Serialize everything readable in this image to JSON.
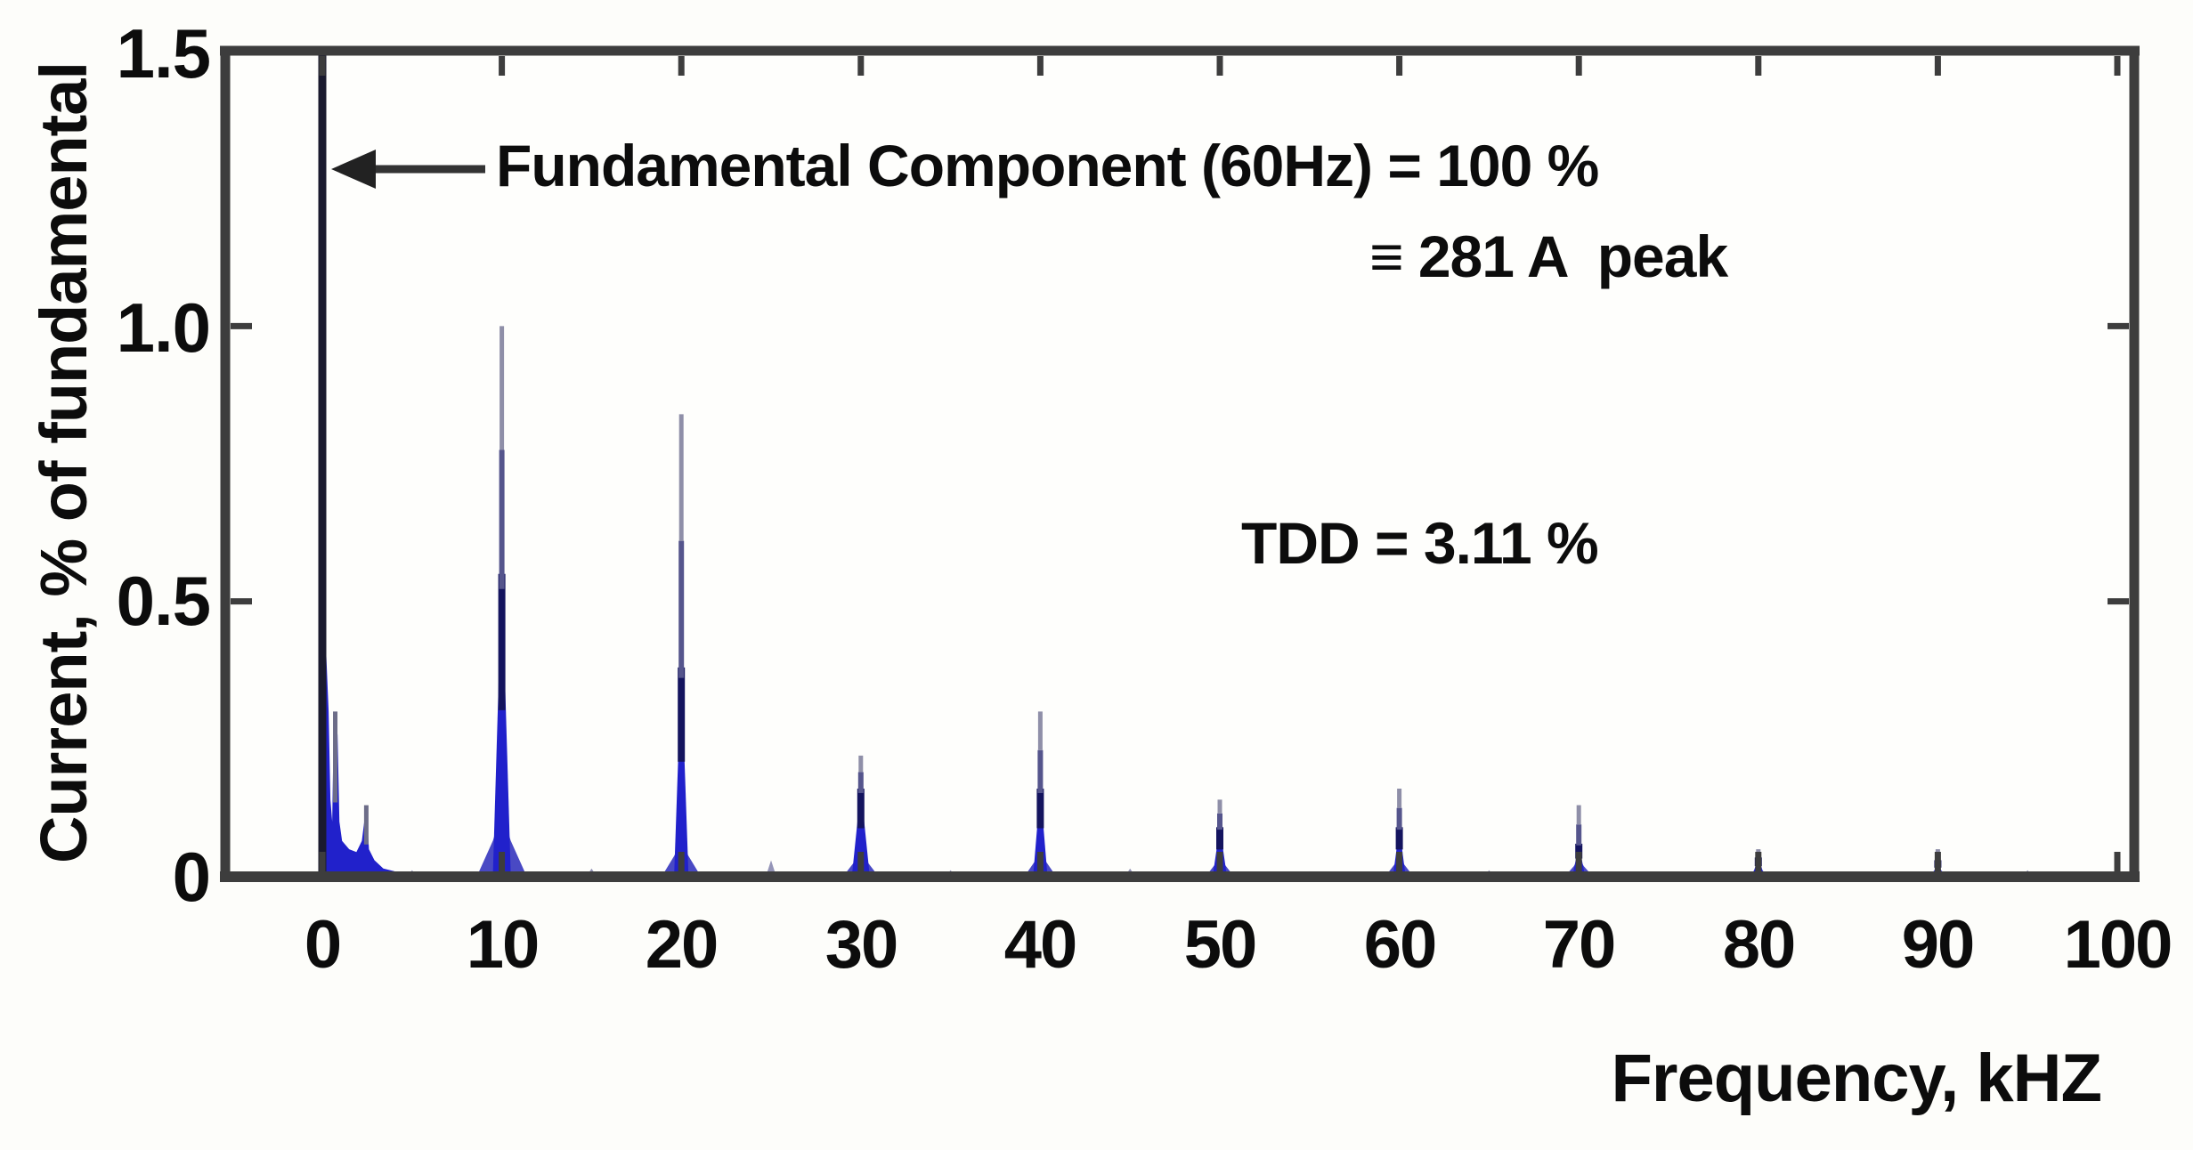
{
  "figure": {
    "background_color": "#fdfdfa",
    "frame_color": "#3d3d3d",
    "text_color": "#0c0c0c"
  },
  "chart_data": {
    "type": "area",
    "description": "Harmonic current spectrum (FFT) of line current, magnitudes as % of the 60 Hz fundamental",
    "xlabel": "Frequency, kHZ",
    "ylabel": "Current, % of fundamental",
    "xlim": [
      0,
      100
    ],
    "ylim": [
      0,
      1.5
    ],
    "grid": false,
    "legend": false,
    "x_ticks": [
      0,
      10,
      20,
      30,
      40,
      50,
      60,
      70,
      80,
      90,
      100
    ],
    "x_tick_labels": [
      "0",
      "10",
      "20",
      "30",
      "40",
      "50",
      "60",
      "70",
      "80",
      "90",
      "100"
    ],
    "y_ticks_top_to_bottom": [
      1.5,
      1.0,
      0.5,
      0
    ],
    "y_tick_labels_top_to_bottom": [
      "1.5",
      "1.0",
      "0.5",
      "0"
    ],
    "series_color": "#2121cb",
    "series_dark_color": "#14145e",
    "tip_line_color": "#8f8fa8",
    "fundamental": {
      "frequency_hz": 60,
      "value_percent_of_fundamental": 100,
      "note_clipped_at_plot_top": true,
      "line_color": "#1a1a2e"
    },
    "harmonic_peaks": [
      {
        "f_khz": 10,
        "peak_percent": 1.0,
        "solid_percent": 0.55,
        "core_w": 0.5,
        "skirt_w": 1.4,
        "skirt_h": 0.12
      },
      {
        "f_khz": 20,
        "peak_percent": 0.84,
        "solid_percent": 0.38,
        "core_w": 0.4,
        "skirt_w": 1.1,
        "skirt_h": 0.07
      },
      {
        "f_khz": 30,
        "peak_percent": 0.22,
        "solid_percent": 0.16,
        "core_w": 0.5,
        "skirt_w": 1.0,
        "skirt_h": 0.05
      },
      {
        "f_khz": 40,
        "peak_percent": 0.3,
        "solid_percent": 0.16,
        "core_w": 0.4,
        "skirt_w": 0.9,
        "skirt_h": 0.05
      },
      {
        "f_khz": 50,
        "peak_percent": 0.14,
        "solid_percent": 0.09,
        "core_w": 0.4,
        "skirt_w": 0.8,
        "skirt_h": 0.04
      },
      {
        "f_khz": 60,
        "peak_percent": 0.16,
        "solid_percent": 0.09,
        "core_w": 0.35,
        "skirt_w": 0.8,
        "skirt_h": 0.04
      },
      {
        "f_khz": 70,
        "peak_percent": 0.13,
        "solid_percent": 0.06,
        "core_w": 0.35,
        "skirt_w": 0.8,
        "skirt_h": 0.035
      },
      {
        "f_khz": 80,
        "peak_percent": 0.05,
        "solid_percent": 0.035,
        "core_w": 0.35,
        "skirt_w": 0.7,
        "skirt_h": 0.02
      },
      {
        "f_khz": 90,
        "peak_percent": 0.05,
        "solid_percent": 0.03,
        "core_w": 0.3,
        "skirt_w": 0.6,
        "skirt_h": 0.02
      }
    ],
    "low_freq_cluster_points": [
      [
        0.15,
        0
      ],
      [
        0.2,
        0.42
      ],
      [
        0.35,
        0.3
      ],
      [
        0.45,
        0.14
      ],
      [
        0.55,
        0.1
      ],
      [
        0.65,
        0.3
      ],
      [
        0.75,
        0.2
      ],
      [
        0.85,
        0.26
      ],
      [
        0.95,
        0.1
      ],
      [
        1.1,
        0.065
      ],
      [
        1.5,
        0.05
      ],
      [
        1.9,
        0.045
      ],
      [
        2.2,
        0.065
      ],
      [
        2.45,
        0.13
      ],
      [
        2.6,
        0.05
      ],
      [
        2.9,
        0.03
      ],
      [
        3.4,
        0.015
      ],
      [
        4.0,
        0.01
      ],
      [
        5.0,
        0
      ]
    ],
    "low_freq_tip_lines": [
      [
        0.72,
        0.3
      ],
      [
        2.45,
        0.13
      ]
    ],
    "minor_bumps": [
      [
        5,
        0.012
      ],
      [
        15,
        0.015
      ],
      [
        25,
        0.03
      ],
      [
        35,
        0.012
      ],
      [
        45,
        0.015
      ],
      [
        55,
        0.01
      ],
      [
        65,
        0.012
      ],
      [
        75,
        0.01
      ],
      [
        85,
        0.01
      ],
      [
        95,
        0.012
      ]
    ],
    "annotations": {
      "line1": "Fundamental Component (60Hz) = 100 %",
      "line2": "≡ 281 A  peak",
      "tdd": "TDD = 3.11 %"
    }
  }
}
